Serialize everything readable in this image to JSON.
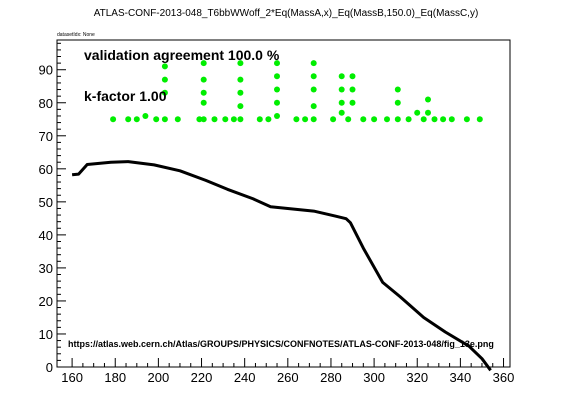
{
  "chart_data": {
    "type": "line+scatter",
    "title": "ATLAS-CONF-2013-048_T6bbWWoff_2*Eq(MassA,x)_Eq(MassB,150.0)_Eq(MassC,y)",
    "dataset_label": "datasetIdx: None",
    "annotations": [
      "validation agreement 100.0 %",
      "k-factor 1.00"
    ],
    "url": "https://atlas.web.cern.ch/Atlas/GROUPS/PHYSICS/CONFNOTES/ATLAS-CONF-2013-048/fig_13e.png",
    "xlim": [
      153,
      363
    ],
    "ylim": [
      0,
      99
    ],
    "xticks": [
      160,
      180,
      200,
      220,
      240,
      260,
      280,
      300,
      320,
      340,
      360
    ],
    "yticks": [
      0,
      10,
      20,
      30,
      40,
      50,
      60,
      70,
      80,
      90
    ],
    "grid": false,
    "curve": {
      "color": "#000000",
      "points": [
        [
          160,
          58.2
        ],
        [
          163,
          58.4
        ],
        [
          167,
          61.3
        ],
        [
          178,
          62
        ],
        [
          186,
          62.2
        ],
        [
          198,
          61.2
        ],
        [
          210,
          59.4
        ],
        [
          222,
          56.5
        ],
        [
          232,
          53.8
        ],
        [
          244,
          50.9
        ],
        [
          252,
          48.5
        ],
        [
          260,
          48
        ],
        [
          272,
          47.2
        ],
        [
          282,
          45.7
        ],
        [
          287,
          44.9
        ],
        [
          289,
          43.7
        ],
        [
          295,
          36
        ],
        [
          304,
          25.6
        ],
        [
          312,
          21.3
        ],
        [
          323,
          15
        ],
        [
          333,
          10.6
        ],
        [
          344,
          6.3
        ],
        [
          350,
          2.5
        ],
        [
          354,
          -1
        ]
      ]
    },
    "points": {
      "color": "#00ee00",
      "values": [
        [
          179,
          75
        ],
        [
          186,
          75
        ],
        [
          190,
          75
        ],
        [
          194,
          76
        ],
        [
          199,
          75
        ],
        [
          203,
          75
        ],
        [
          209,
          75
        ],
        [
          203,
          83
        ],
        [
          203,
          87
        ],
        [
          203,
          91
        ],
        [
          219,
          75
        ],
        [
          221,
          75
        ],
        [
          226,
          75
        ],
        [
          221,
          80
        ],
        [
          221,
          83
        ],
        [
          221,
          87
        ],
        [
          221,
          92
        ],
        [
          231,
          75
        ],
        [
          235,
          75
        ],
        [
          238,
          75
        ],
        [
          238,
          79
        ],
        [
          238,
          83
        ],
        [
          238,
          87
        ],
        [
          238,
          92
        ],
        [
          247,
          75
        ],
        [
          251,
          75
        ],
        [
          255,
          76
        ],
        [
          255,
          80
        ],
        [
          255,
          84
        ],
        [
          255,
          88
        ],
        [
          255,
          92
        ],
        [
          264,
          75
        ],
        [
          268,
          75
        ],
        [
          272,
          75
        ],
        [
          272,
          79
        ],
        [
          272,
          84
        ],
        [
          272,
          88
        ],
        [
          272,
          92
        ],
        [
          281,
          75
        ],
        [
          285,
          77
        ],
        [
          288,
          75
        ],
        [
          285,
          80
        ],
        [
          285,
          84
        ],
        [
          285,
          88
        ],
        [
          290,
          88
        ],
        [
          290,
          84
        ],
        [
          290,
          80
        ],
        [
          295,
          75
        ],
        [
          300,
          75
        ],
        [
          306,
          75
        ],
        [
          311,
          75
        ],
        [
          311,
          80
        ],
        [
          311,
          84
        ],
        [
          316,
          75
        ],
        [
          320,
          77
        ],
        [
          323,
          75
        ],
        [
          328,
          75
        ],
        [
          325,
          77
        ],
        [
          325,
          81
        ],
        [
          332,
          75
        ],
        [
          336,
          75
        ],
        [
          343,
          75
        ],
        [
          349,
          75
        ]
      ]
    }
  }
}
